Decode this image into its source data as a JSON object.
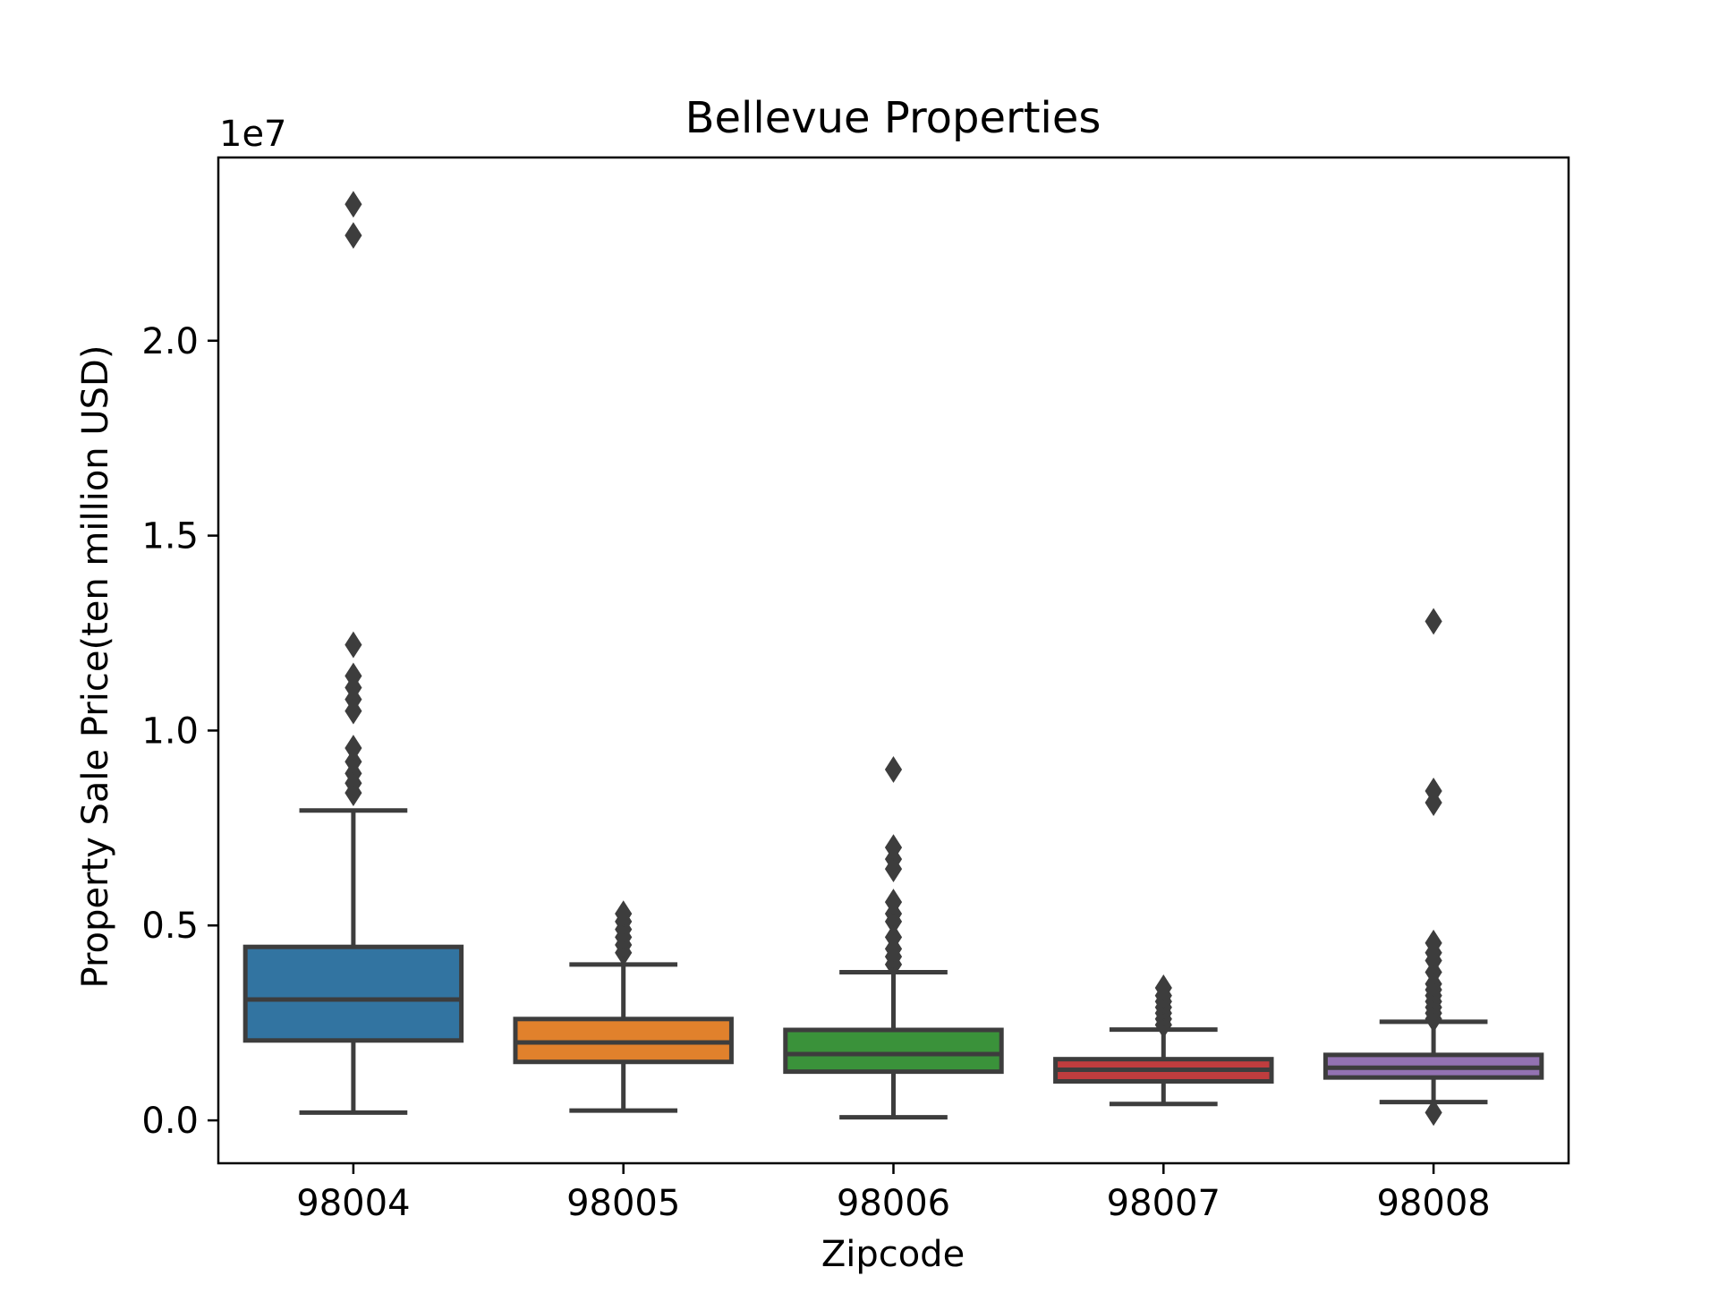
{
  "chart_data": {
    "type": "box",
    "title": "Bellevue Properties",
    "xlabel": "Zipcode",
    "ylabel": "Property Sale Price(ten million USD)",
    "y_offset_label": "1e7",
    "y_scale": 10000000,
    "ylim": [
      -0.11,
      2.47
    ],
    "yticks": [
      0.0,
      0.5,
      1.0,
      1.5,
      2.0
    ],
    "ytick_labels": [
      "0.0",
      "0.5",
      "1.0",
      "1.5",
      "2.0"
    ],
    "grid": false,
    "legend": "none",
    "categories": [
      "98004",
      "98005",
      "98006",
      "98007",
      "98008"
    ],
    "series": [
      {
        "category": "98004",
        "color": "#3274a1",
        "whisker_low": 0.02,
        "q1": 0.205,
        "median": 0.31,
        "q3": 0.445,
        "whisker_high": 0.795,
        "outliers": [
          0.84,
          0.865,
          0.89,
          0.92,
          0.955,
          1.05,
          1.08,
          1.11,
          1.14,
          1.22,
          2.27,
          2.35
        ]
      },
      {
        "category": "98005",
        "color": "#e1812c",
        "whisker_low": 0.025,
        "q1": 0.15,
        "median": 0.2,
        "q3": 0.26,
        "whisker_high": 0.4,
        "outliers": [
          0.43,
          0.45,
          0.47,
          0.49,
          0.51,
          0.53
        ]
      },
      {
        "category": "98006",
        "color": "#3a923a",
        "whisker_low": 0.008,
        "q1": 0.125,
        "median": 0.17,
        "q3": 0.232,
        "whisker_high": 0.38,
        "outliers": [
          0.4,
          0.42,
          0.44,
          0.47,
          0.51,
          0.53,
          0.56,
          0.645,
          0.67,
          0.7,
          0.9
        ]
      },
      {
        "category": "98007",
        "color": "#c03d3e",
        "whisker_low": 0.042,
        "q1": 0.1,
        "median": 0.13,
        "q3": 0.157,
        "whisker_high": 0.233,
        "outliers": [
          0.245,
          0.26,
          0.275,
          0.29,
          0.305,
          0.32,
          0.34
        ]
      },
      {
        "category": "98008",
        "color": "#9372b2",
        "whisker_low": 0.047,
        "q1": 0.11,
        "median": 0.135,
        "q3": 0.168,
        "whisker_high": 0.253,
        "outliers": [
          0.02,
          0.26,
          0.275,
          0.29,
          0.305,
          0.32,
          0.335,
          0.35,
          0.38,
          0.41,
          0.43,
          0.455,
          0.815,
          0.845,
          1.28
        ]
      }
    ]
  }
}
